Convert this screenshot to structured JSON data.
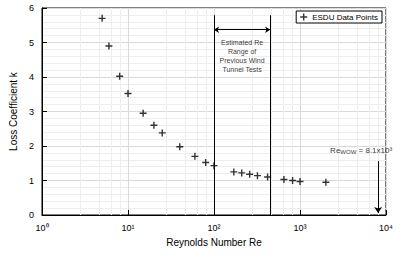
{
  "chart_data": {
    "type": "scatter",
    "x_label": "Reynolds Number Re",
    "y_label": "Loss Coefficient k",
    "log": "x",
    "grid": true,
    "legend": "upper right",
    "series": [
      {
        "name": "ESDU Data Points",
        "color": "#000000",
        "marker": "plus",
        "x": [
          5,
          6,
          8,
          10,
          15,
          20,
          25,
          40,
          60,
          80,
          100,
          170,
          210,
          260,
          320,
          420,
          650,
          820,
          1000,
          2000
        ],
        "values": [
          5.7,
          4.9,
          4.02,
          3.52,
          2.95,
          2.6,
          2.38,
          1.98,
          1.7,
          1.52,
          1.43,
          1.25,
          1.22,
          1.18,
          1.14,
          1.1,
          1.03,
          1.0,
          0.97,
          0.95
        ]
      }
    ],
    "xlim": [
      1,
      10000
    ],
    "xticks": [
      {
        "value": 1,
        "label": "10⁰"
      },
      {
        "value": 10,
        "label": "10¹"
      },
      {
        "value": 100,
        "label": "10²"
      },
      {
        "value": 1000,
        "label": "10³"
      },
      {
        "value": 10000,
        "label": "10⁴"
      }
    ],
    "ylim": [
      0,
      6
    ],
    "yticks": [
      0,
      1,
      2,
      3,
      4,
      5,
      6
    ],
    "annotations": [
      {
        "type": "range",
        "x_start": 100,
        "x_end": 450,
        "text": "Estimated Re\nRange of\nPrevious Wind\nTunnel Tests"
      },
      {
        "type": "arrow",
        "x": 8100,
        "text_base": "Re",
        "text_sub": "WOW",
        "text_rest": " = 8.1x10³"
      }
    ]
  }
}
